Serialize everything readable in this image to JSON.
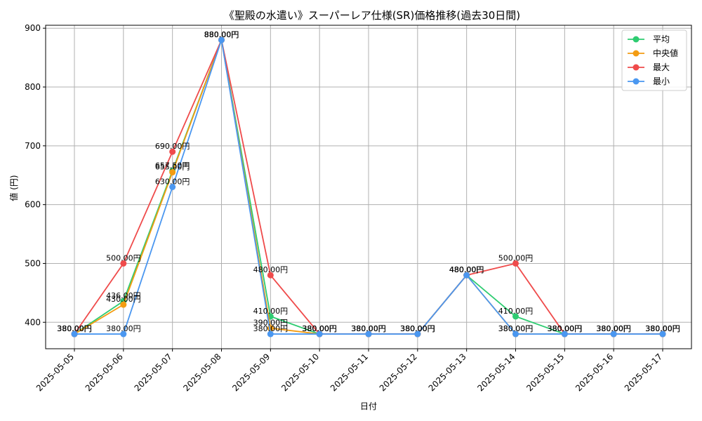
{
  "chart_data": {
    "type": "line",
    "title": "《聖殿の水遣い》スーパーレア仕様(SR)価格推移(過去30日間)",
    "xlabel": "日付",
    "ylabel": "値 (円)",
    "ylim": [
      355,
      905
    ],
    "yticks": [
      400,
      500,
      600,
      700,
      800,
      900
    ],
    "grid": true,
    "legend_position": "top-right",
    "label_suffix": "円",
    "categories": [
      "2025-05-05",
      "2025-05-06",
      "2025-05-07",
      "2025-05-08",
      "2025-05-09",
      "2025-05-10",
      "2025-05-11",
      "2025-05-12",
      "2025-05-13",
      "2025-05-14",
      "2025-05-15",
      "2025-05-16",
      "2025-05-17"
    ],
    "series": [
      {
        "name": "平均",
        "color": "#2ecc71",
        "values": [
          380,
          436,
          657.5,
          880,
          410,
          380,
          380,
          380,
          480,
          410,
          380,
          380,
          380
        ]
      },
      {
        "name": "中央値",
        "color": "#f39c12",
        "values": [
          380,
          430,
          655,
          880,
          390,
          380,
          380,
          380,
          480,
          380,
          380,
          380,
          380
        ]
      },
      {
        "name": "最大",
        "color": "#ef4b4b",
        "values": [
          380,
          500,
          690,
          880,
          480,
          380,
          380,
          380,
          480,
          500,
          380,
          380,
          380
        ]
      },
      {
        "name": "最小",
        "color": "#4a97f0",
        "values": [
          380,
          380,
          630,
          880,
          380,
          380,
          380,
          380,
          480,
          380,
          380,
          380,
          380
        ]
      }
    ]
  }
}
